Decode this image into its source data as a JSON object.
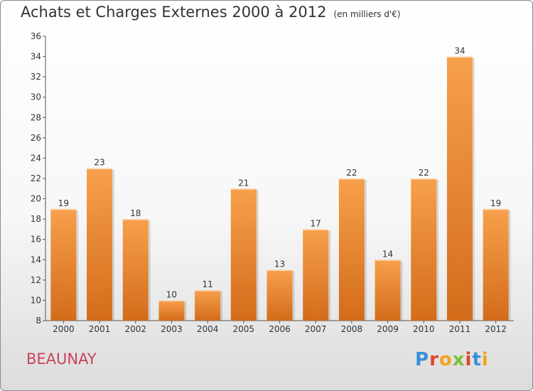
{
  "header": {
    "title": "Achats et Charges Externes 2000 à 2012",
    "unit": "(en milliers d'€)"
  },
  "footer": {
    "commune": "BEAUNAY",
    "logo_text": "Proxiti"
  },
  "colors": {
    "bar_top": "#f7a04c",
    "bar_bottom": "#d36c1a",
    "commune_text": "#c8435a",
    "logo_letters": [
      "#3a8fd6",
      "#e2432c",
      "#f2a31b",
      "#7bbf3a",
      "#e2432c",
      "#3a8fd6",
      "#f2a31b"
    ]
  },
  "chart_data": {
    "type": "bar",
    "title": "Achats et Charges Externes 2000 à 2012",
    "subtitle": "(en milliers d'€)",
    "categories": [
      "2000",
      "2001",
      "2002",
      "2003",
      "2004",
      "2005",
      "2006",
      "2007",
      "2008",
      "2009",
      "2010",
      "2011",
      "2012"
    ],
    "values": [
      19,
      23,
      18,
      10,
      11,
      21,
      13,
      17,
      22,
      14,
      22,
      34,
      19
    ],
    "ylim": [
      8,
      36
    ],
    "yticks": [
      8,
      10,
      12,
      14,
      16,
      18,
      20,
      22,
      24,
      26,
      28,
      30,
      32,
      34,
      36
    ],
    "grid": false,
    "legend": "none"
  }
}
